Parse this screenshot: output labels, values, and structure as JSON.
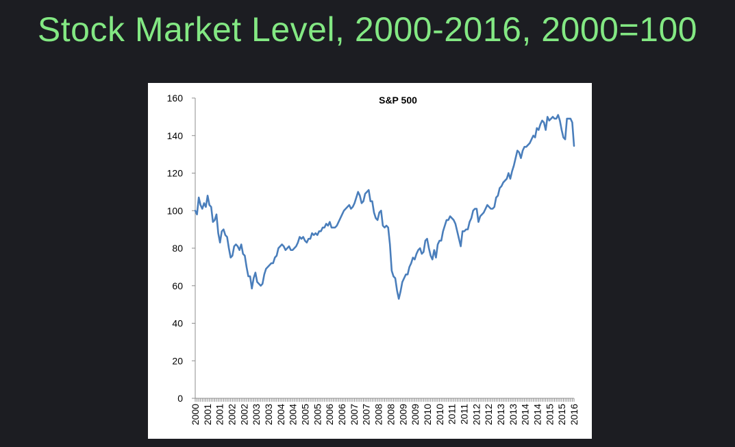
{
  "slide": {
    "title": "Stock Market Level, 2000-2016, 2000=100"
  },
  "colors": {
    "background": "#1c1d22",
    "title": "#83e883",
    "line": "#4a7ebb"
  },
  "chart_data": {
    "type": "line",
    "title": "S&P 500",
    "xlabel": "",
    "ylabel": "",
    "ylim": [
      0,
      160
    ],
    "yticks": [
      0,
      20,
      40,
      60,
      80,
      100,
      120,
      140,
      160
    ],
    "grid": false,
    "legend": "none",
    "xtick_labels": [
      "2000",
      "2001",
      "2001",
      "2002",
      "2002",
      "2003",
      "2003",
      "2004",
      "2004",
      "2005",
      "2005",
      "2006",
      "2006",
      "2007",
      "2007",
      "2008",
      "2008",
      "2009",
      "2009",
      "2010",
      "2010",
      "2011",
      "2011",
      "2012",
      "2012",
      "2013",
      "2013",
      "2014",
      "2014",
      "2015",
      "2015",
      "2016"
    ],
    "series": [
      {
        "x_start": 2000.0,
        "x_step": 0.08333,
        "values": [
          100,
          98,
          107,
          103,
          101,
          104,
          102,
          108,
          103,
          102,
          94,
          95,
          98,
          88,
          83,
          89,
          90,
          87,
          86,
          80,
          75,
          76,
          81,
          82,
          81,
          79,
          82,
          77,
          76,
          70,
          65,
          65,
          58.5,
          64,
          67,
          62,
          61,
          60,
          61,
          66,
          69,
          70,
          71,
          72,
          72,
          75,
          76,
          80,
          81,
          82,
          81,
          79,
          80,
          81,
          79,
          79,
          80,
          81,
          83,
          86,
          85,
          86,
          84,
          83,
          85,
          85,
          88,
          87,
          88,
          87,
          89,
          89,
          91,
          91,
          93,
          92,
          94,
          91,
          91,
          91,
          92,
          94,
          96,
          98,
          100,
          101,
          102,
          103,
          101,
          102,
          104,
          107,
          110,
          108,
          104,
          105,
          109,
          110,
          111,
          105,
          105,
          99,
          96,
          95,
          99,
          100,
          92,
          91,
          92,
          91,
          82,
          68,
          65,
          64,
          57.5,
          53,
          57,
          62,
          64,
          66,
          66,
          70,
          72,
          75,
          74,
          77,
          79,
          80,
          77,
          78,
          84,
          85,
          80,
          76,
          74,
          79,
          75,
          82,
          84,
          84,
          89,
          92,
          95,
          95,
          97,
          96,
          95,
          93,
          89,
          85,
          81,
          89,
          89,
          90,
          90,
          94,
          96,
          100,
          101,
          101,
          94,
          97,
          98,
          99,
          101,
          103,
          102,
          101,
          101,
          102,
          107,
          108,
          112,
          113,
          115,
          116,
          117,
          120,
          117,
          121,
          124,
          128,
          132,
          131,
          128,
          132,
          134,
          134,
          135,
          136,
          138,
          140,
          139,
          144,
          143,
          146,
          148,
          147,
          143,
          150,
          148,
          149,
          150,
          149,
          149,
          151,
          148,
          143,
          139,
          138,
          149,
          149,
          149,
          147,
          134.5
        ]
      }
    ]
  }
}
